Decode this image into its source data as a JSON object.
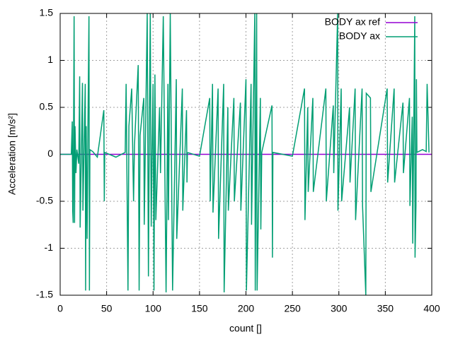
{
  "chart_data": {
    "type": "line",
    "xlabel": "count []",
    "ylabel": "Acceleration [m/s²]",
    "xlim": [
      0,
      400
    ],
    "xticks": [
      0,
      50,
      100,
      150,
      200,
      250,
      300,
      350,
      400
    ],
    "ylim": [
      -1.5,
      1.5
    ],
    "yticks": [
      -1.5,
      -1,
      -0.5,
      0,
      0.5,
      1,
      1.5
    ],
    "grid": true,
    "legend": "top-right",
    "series": [
      {
        "name": "BODY ax ref",
        "color": "#9400d3",
        "x": [
          0,
          400
        ],
        "values": [
          0,
          0
        ]
      },
      {
        "name": "BODY ax",
        "color": "#009e73",
        "x": [
          0,
          12,
          13,
          13.5,
          14,
          15,
          15.5,
          16,
          17,
          18,
          20,
          21,
          21.5,
          23,
          24,
          24.5,
          27,
          27.4,
          28,
          29,
          30,
          31,
          31.5,
          32,
          35,
          40,
          47,
          47.5,
          48,
          60,
          70,
          71,
          73,
          74,
          77,
          79,
          80,
          84,
          85,
          86,
          90,
          90.5,
          93.7,
          95,
          96,
          97,
          98,
          100,
          101,
          102,
          103,
          107,
          108,
          111,
          114,
          116,
          116.5,
          118.5,
          121,
          125,
          125.5,
          131.5,
          132,
          136,
          136.5,
          137,
          150,
          161,
          161.5,
          164,
          164.5,
          170,
          170.5,
          176,
          176.5,
          180.5,
          181,
          187,
          187.5,
          194,
          194.5,
          200,
          200.5,
          205.5,
          206,
          209.5,
          210,
          211.5,
          212,
          215.5,
          216,
          217,
          228,
          228.5,
          229,
          250,
          263,
          263.5,
          266.5,
          267,
          272,
          272.5,
          286,
          286.5,
          294,
          294.5,
          298.7,
          299,
          302.5,
          303,
          311.5,
          312,
          317.5,
          318,
          325,
          325.5,
          329,
          329.5,
          334,
          334.5,
          352,
          352.5,
          359.5,
          360,
          369,
          369.5,
          376,
          376.5,
          379,
          379.5,
          381.7,
          382,
          383,
          383.5,
          384,
          390,
          394,
          395,
          396,
          397
        ],
        "values": [
          0,
          0,
          0.35,
          -0.6,
          -0.73,
          1.47,
          -0.73,
          0.3,
          -0.2,
          0.05,
          -0.1,
          0.83,
          -0.78,
          0.1,
          0.76,
          -0.6,
          0.75,
          -1.45,
          0.3,
          -0.9,
          0.4,
          1.47,
          -1.45,
          0.05,
          0.03,
          -0.03,
          0.47,
          -0.5,
          0.02,
          -0.03,
          0.02,
          0.75,
          -1.45,
          0.3,
          0.7,
          -0.5,
          0.1,
          0.95,
          -1.45,
          0.2,
          0.6,
          -0.75,
          1.5,
          -1.3,
          0.3,
          1.5,
          -0.77,
          0.75,
          -1.45,
          0.85,
          -0.7,
          0.5,
          -0.2,
          1.47,
          -1.47,
          0.75,
          -0.7,
          1.5,
          -1.45,
          0.8,
          -0.9,
          0.7,
          -0.6,
          0.47,
          -0.3,
          0.02,
          -0.02,
          0.6,
          -0.5,
          0.75,
          -0.62,
          0.7,
          -0.9,
          0.75,
          -1.47,
          0.5,
          -0.6,
          0.6,
          -0.5,
          0.55,
          -0.6,
          0.8,
          -1.45,
          0.75,
          -0.75,
          1.5,
          -1.45,
          1.5,
          -1.45,
          0.6,
          -0.8,
          0.02,
          0.52,
          -1.1,
          0.02,
          -0.02,
          0.7,
          -0.7,
          0.5,
          -0.4,
          0.6,
          -0.4,
          0.7,
          -0.5,
          0.52,
          -0.2,
          1.5,
          -0.6,
          0.7,
          -0.5,
          0.5,
          -0.3,
          0.7,
          -0.7,
          0.7,
          -0.55,
          -1.5,
          0.65,
          0.6,
          -0.4,
          0.7,
          -0.3,
          0.7,
          -0.3,
          0.55,
          -0.2,
          0.6,
          -0.55,
          0.4,
          -0.95,
          1.47,
          -1.1,
          -0.55,
          0.8,
          0.02,
          0.05,
          0.03,
          0.75,
          0.4,
          0.02
        ]
      }
    ]
  }
}
